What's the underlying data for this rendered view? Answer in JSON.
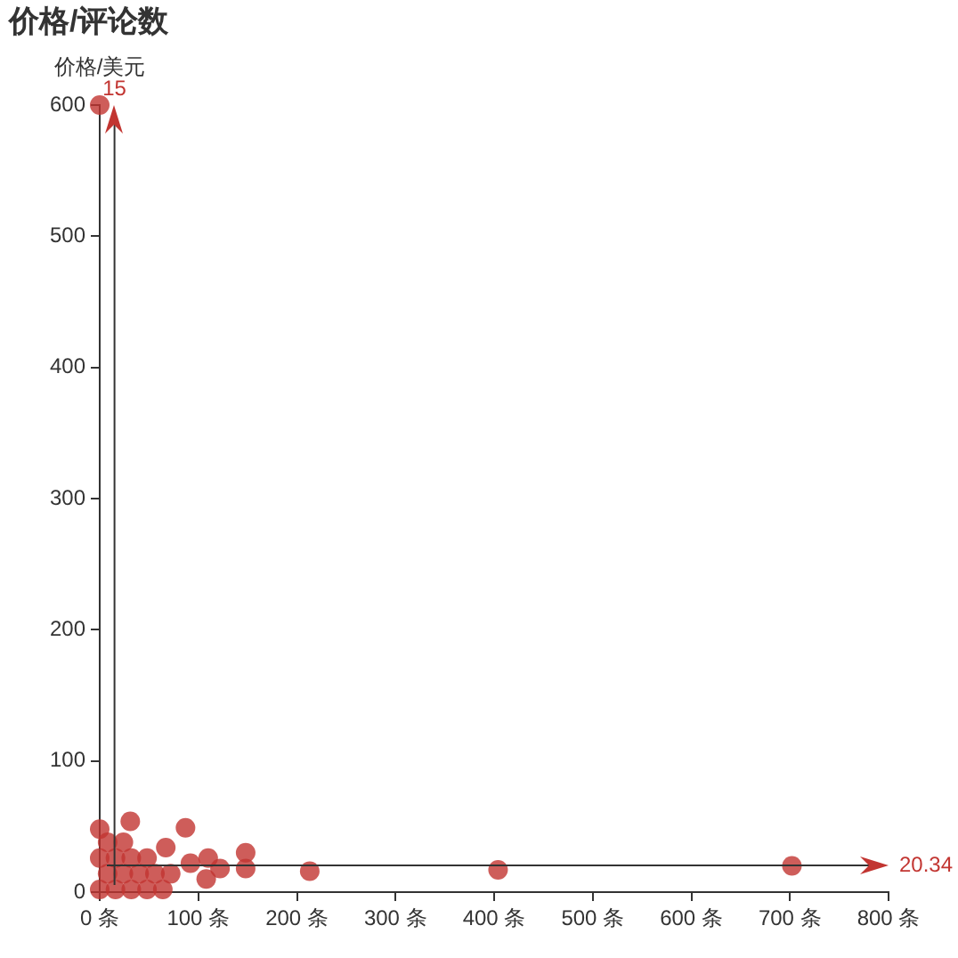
{
  "chart_data": {
    "type": "scatter",
    "title": "价格/评论数",
    "ylabel": "价格/美元",
    "marker": "circle",
    "xlim": [
      0,
      800
    ],
    "xticks": [
      {
        "value": 0,
        "label": "0 条"
      },
      {
        "value": 100,
        "label": "100 条"
      },
      {
        "value": 200,
        "label": "200 条"
      },
      {
        "value": 300,
        "label": "300 条"
      },
      {
        "value": 400,
        "label": "400 条"
      },
      {
        "value": 500,
        "label": "500 条"
      },
      {
        "value": 600,
        "label": "600 条"
      },
      {
        "value": 700,
        "label": "700 条"
      },
      {
        "value": 800,
        "label": "800 条"
      }
    ],
    "ylim": [
      0,
      600
    ],
    "yticks": [
      0,
      100,
      200,
      300,
      400,
      500,
      600
    ],
    "series": [
      {
        "color": "#c23531",
        "x": [
          0,
          0,
          16,
          32,
          48,
          64,
          8,
          24,
          40,
          56,
          72,
          0,
          16,
          32,
          48,
          67,
          8,
          24,
          0,
          31,
          87,
          92,
          108,
          110,
          122,
          148,
          148,
          213,
          404,
          702
        ],
        "values": [
          600,
          2,
          2,
          2,
          2,
          2,
          14,
          14,
          14,
          14,
          14,
          26,
          26,
          26,
          26,
          34,
          38,
          38,
          48,
          54,
          49,
          22,
          10,
          26,
          18,
          18,
          30,
          16,
          17,
          20
        ]
      }
    ],
    "ref_lines": [
      {
        "axis": "x",
        "value": 15,
        "label": "15"
      },
      {
        "axis": "y",
        "value": 20.34,
        "label": "20.34"
      }
    ]
  }
}
